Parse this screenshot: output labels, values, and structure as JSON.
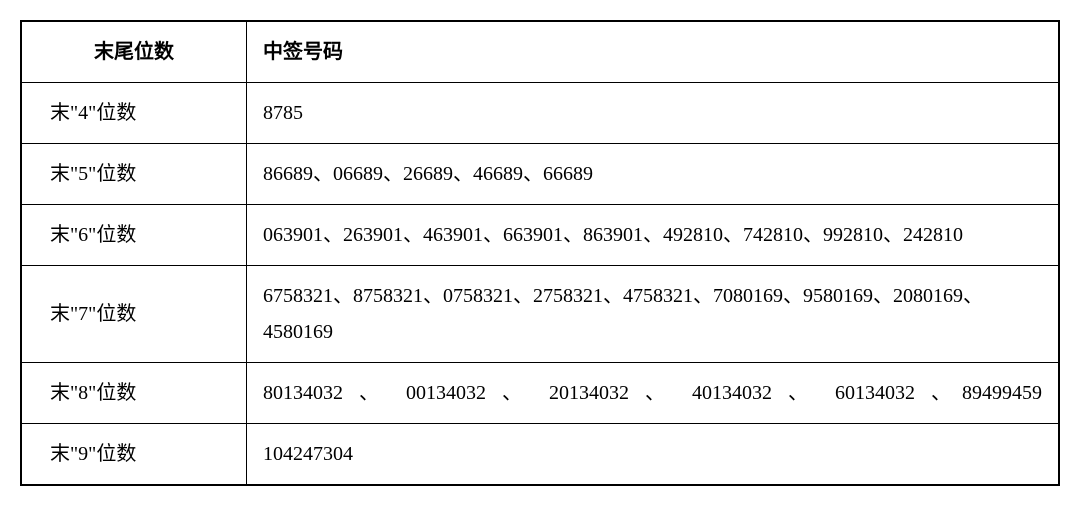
{
  "table": {
    "columns": [
      "末尾位数",
      "中签号码"
    ],
    "rows": [
      {
        "label": "末\"4\"位数",
        "value": "8785",
        "justify": false
      },
      {
        "label": "末\"5\"位数",
        "value": "86689、06689、26689、46689、66689",
        "justify": false
      },
      {
        "label": "末\"6\"位数",
        "value": "063901、263901、463901、663901、863901、492810、742810、992810、242810",
        "justify": false
      },
      {
        "label": "末\"7\"位数",
        "value": "6758321、8758321、0758321、2758321、4758321、7080169、9580169、2080169、4580169",
        "justify": false
      },
      {
        "label": "末\"8\"位数",
        "value": "80134032 、 00134032 、 20134032 、 40134032 、 60134032 、89499459",
        "justify": true
      },
      {
        "label": "末\"9\"位数",
        "value": "104247304",
        "justify": false
      }
    ],
    "col_widths": [
      "180px",
      "auto"
    ],
    "border_color": "#000000",
    "background_color": "#ffffff",
    "font_family": "SimSun",
    "header_fontsize": 20,
    "cell_fontsize": 20
  }
}
